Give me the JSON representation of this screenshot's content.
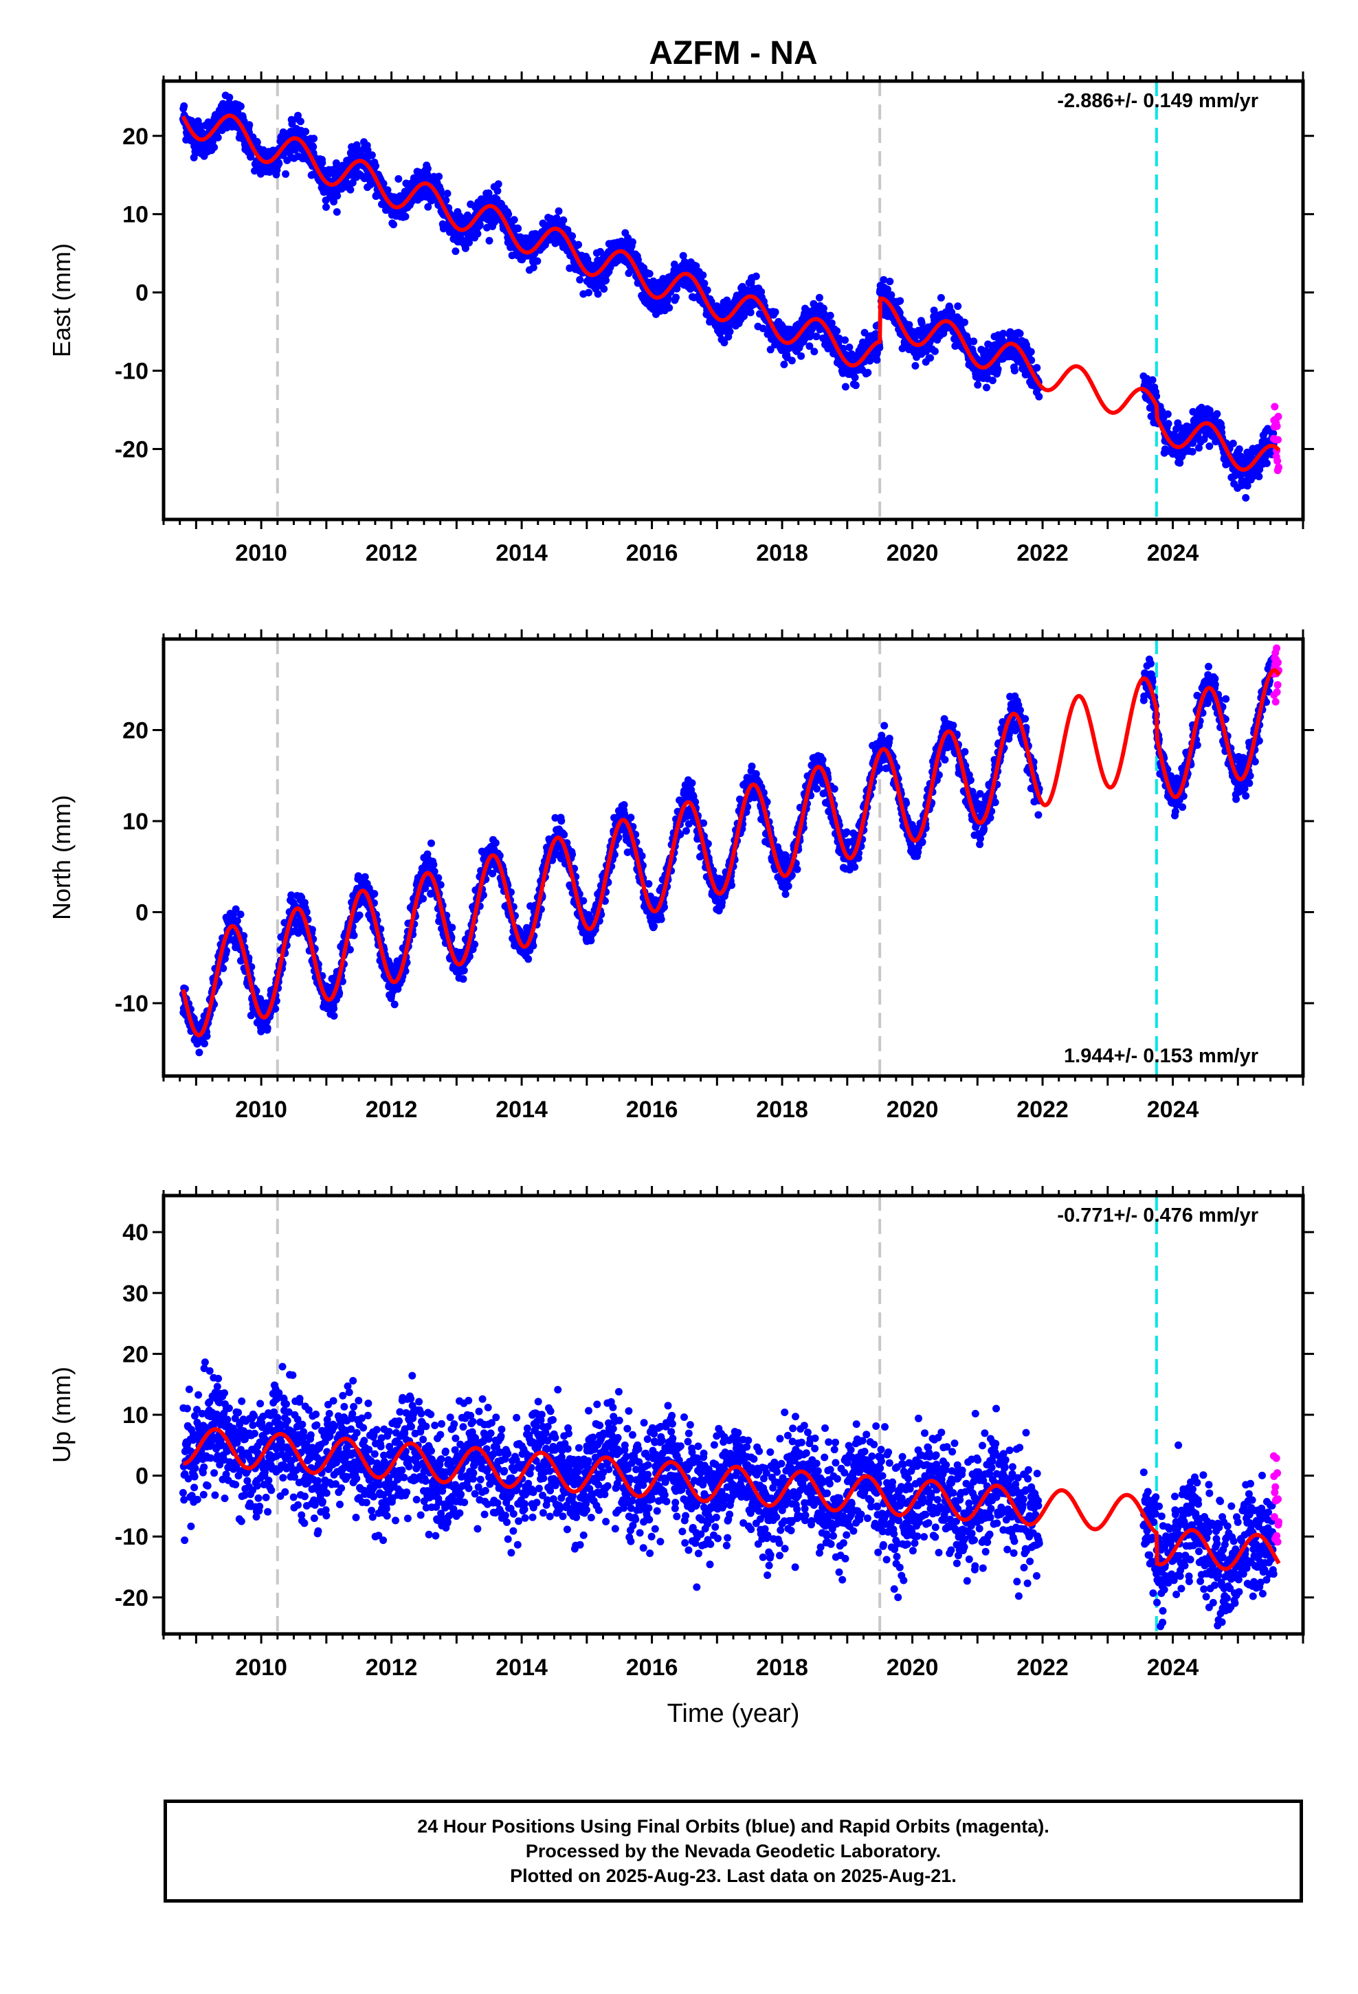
{
  "title": "AZFM - NA",
  "xlabel": "Time (year)",
  "colors": {
    "final_orbits": "#0000ff",
    "rapid_orbits": "#ff00ff",
    "model_fit": "#ff0000",
    "equipment_change": "#c8c8c8",
    "event_line": "#00e5e5"
  },
  "footer": {
    "line1": "24 Hour Positions Using Final Orbits (blue) and Rapid Orbits (magenta).",
    "line2": "Processed by the Nevada Geodetic Laboratory.",
    "line3": "Plotted on 2025-Aug-23. Last data on 2025-Aug-21."
  },
  "chart_data": [
    {
      "type": "scatter",
      "panel": "east",
      "ylabel": "East (mm)",
      "rate_label": "-2.886+/- 0.149 mm/yr",
      "xlim": [
        2008.5,
        2026.0
      ],
      "ylim": [
        -29,
        27
      ],
      "xticks": [
        2010,
        2012,
        2014,
        2016,
        2018,
        2020,
        2022,
        2024
      ],
      "yticks": [
        -20,
        -10,
        0,
        10,
        20
      ],
      "grey_dashed_lines": [
        2010.25,
        2019.5
      ],
      "cyan_dashed_lines": [
        2023.75
      ],
      "model": {
        "t0": 2008.8,
        "y0": 22.5,
        "rate": -2.886,
        "annual_amplitude": 2.2,
        "annual_peak": 2009.55
      },
      "data_segments": [
        {
          "start": 2008.8,
          "end": 2021.95,
          "scatter": 1.1
        },
        {
          "start": 2023.55,
          "end": 2025.55,
          "scatter": 1.1
        }
      ],
      "offsets": [
        {
          "year": 2019.5,
          "value": 5.5
        },
        {
          "year": 2023.75,
          "value": -1.5
        }
      ],
      "rapid_points": {
        "start": 2025.55,
        "end": 2025.63,
        "min": -23,
        "max": -14.5
      }
    },
    {
      "type": "scatter",
      "panel": "north",
      "ylabel": "North (mm)",
      "rate_label": "1.944+/- 0.153 mm/yr",
      "xlim": [
        2008.5,
        2026.0
      ],
      "ylim": [
        -18,
        30
      ],
      "xticks": [
        2010,
        2012,
        2014,
        2016,
        2018,
        2020,
        2022,
        2024
      ],
      "yticks": [
        -10,
        0,
        10,
        20
      ],
      "grey_dashed_lines": [
        2010.25,
        2019.5
      ],
      "cyan_dashed_lines": [
        2023.75
      ],
      "model": {
        "t0": 2008.8,
        "y0": -8.5,
        "rate": 1.944,
        "annual_amplitude": 5.5,
        "annual_peak": 2009.55
      },
      "data_segments": [
        {
          "start": 2008.8,
          "end": 2021.95,
          "scatter": 1.0
        },
        {
          "start": 2023.55,
          "end": 2025.55,
          "scatter": 1.0
        }
      ],
      "offsets": [
        {
          "year": 2023.75,
          "value": -3.0
        }
      ],
      "rapid_points": {
        "start": 2025.55,
        "end": 2025.63,
        "min": 23,
        "max": 29
      }
    },
    {
      "type": "scatter",
      "panel": "up",
      "ylabel": "Up (mm)",
      "rate_label": "-0.771+/- 0.476 mm/yr",
      "xlim": [
        2008.5,
        2026.0
      ],
      "ylim": [
        -26,
        46
      ],
      "xticks": [
        2010,
        2012,
        2014,
        2016,
        2018,
        2020,
        2022,
        2024
      ],
      "yticks": [
        -20,
        -10,
        0,
        10,
        20,
        30,
        40
      ],
      "grey_dashed_lines": [
        2010.25,
        2019.5
      ],
      "cyan_dashed_lines": [
        2023.75
      ],
      "model": {
        "t0": 2008.8,
        "y0": 5.0,
        "rate": -0.771,
        "annual_amplitude": 3.0,
        "annual_peak": 2009.3
      },
      "data_segments": [
        {
          "start": 2008.8,
          "end": 2021.95,
          "scatter": 4.5
        },
        {
          "start": 2023.55,
          "end": 2025.55,
          "scatter": 4.5
        }
      ],
      "offsets": [
        {
          "year": 2023.75,
          "value": -5.0
        }
      ],
      "rapid_points": {
        "start": 2025.55,
        "end": 2025.63,
        "min": -11,
        "max": 4
      }
    }
  ]
}
